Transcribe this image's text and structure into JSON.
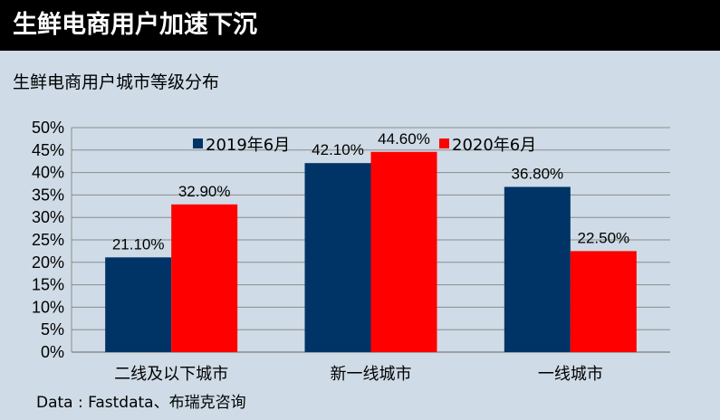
{
  "header": {
    "title": "生鲜电商用户加速下沉"
  },
  "subtitle": "生鲜电商用户城市等级分布",
  "source": "Data : Fastdata、布瑞克咨询",
  "chart_data": {
    "type": "bar",
    "categories": [
      "二线及以下城市",
      "新一线城市",
      "一线城市"
    ],
    "series": [
      {
        "name": "2019年6月",
        "values": [
          21.1,
          42.1,
          36.8
        ],
        "labels": [
          "21.10%",
          "42.10%",
          "36.80%"
        ],
        "color": "#003366"
      },
      {
        "name": "2020年6月",
        "values": [
          32.9,
          44.6,
          22.5
        ],
        "labels": [
          "32.90%",
          "44.60%",
          "22.50%"
        ],
        "color": "#ff0000"
      }
    ],
    "yticks": [
      "0%",
      "5%",
      "10%",
      "15%",
      "20%",
      "25%",
      "30%",
      "35%",
      "40%",
      "45%",
      "50%"
    ],
    "ylim": [
      0,
      50
    ],
    "grid": true,
    "legend": "top-center"
  }
}
